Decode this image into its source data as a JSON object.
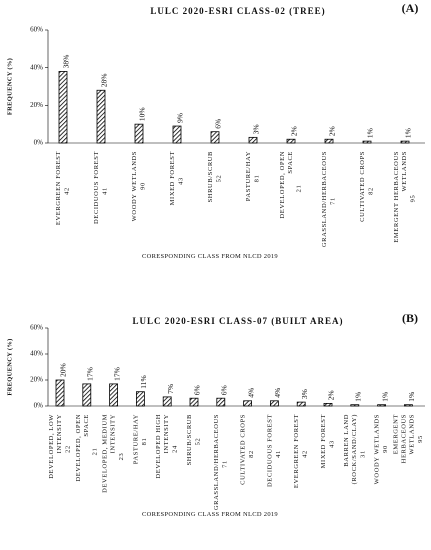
{
  "chart_data": [
    {
      "type": "bar",
      "title": "LULC 2020-ESRI CLASS-02 (TREE)",
      "panel_label": "(A)",
      "y_label": "FREQUENCY (%)",
      "x_label": "CORESPONDING CLASS FROM  NLCD 2019",
      "categories": [
        "EVERGREEN FOREST",
        "DECIDUOUS FOREST",
        "WOODY WETLANDS",
        "MIXED FOREST",
        "SHRUB/SCRUB",
        "PASTURE/HAY",
        "DEVELOPED, OPEN SPACE",
        "GRASSLAND/HERBACEOUS",
        "CULTIVATED CROPS",
        "EMERGENT HERBACEOUS WETLANDS"
      ],
      "codes": [
        "42",
        "41",
        "90",
        "43",
        "52",
        "81",
        "21",
        "71",
        "82",
        "95"
      ],
      "values": [
        38,
        28,
        10,
        9,
        6,
        3,
        2,
        2,
        1,
        1
      ],
      "value_labels": [
        "38%",
        "28%",
        "10%",
        "9%",
        "6%",
        "3%",
        "2%",
        "2%",
        "1%",
        "1%"
      ],
      "color": "#000000",
      "ylim": [
        0,
        60
      ],
      "yticks": [
        {
          "value": 0,
          "label": "0%"
        },
        {
          "value": 20,
          "label": "20%"
        },
        {
          "value": 40,
          "label": "40%"
        },
        {
          "value": 60,
          "label": "60%"
        }
      ]
    },
    {
      "type": "bar",
      "title": "LULC 2020-ESRI CLASS-07 (BUILT AREA)",
      "panel_label": "(B)",
      "y_label": "FREQUENCY (%)",
      "x_label": "CORESPONDING CLASS FROM NLCD 2019",
      "categories": [
        "DEVELOPED, LOW INTENSITY",
        "DEVELOPED, OPEN SPACE",
        "DEVELOPED, MEDIUM INTENSITY",
        "PASTURE/HAY",
        "DEVELOPED HIGH INTENSITY",
        "SHRUB/SCRUB",
        "GRASSLAND/HERBACEOUS",
        "CULTIVATED CROPS",
        "DECIDUOUS FOREST",
        "EVERGREEN FOREST",
        "MIXED FOREST",
        "BARREN LAND (ROCK/SAND/CLAY)",
        "WOODY WETLANDS",
        "EMERGENT HERBACEOUS WETLANDS"
      ],
      "codes": [
        "22",
        "21",
        "23",
        "81",
        "24",
        "52",
        "71",
        "82",
        "41",
        "42",
        "43",
        "31",
        "90",
        "95"
      ],
      "values": [
        20,
        17,
        17,
        11,
        7,
        6,
        6,
        4,
        4,
        3,
        2,
        1,
        1,
        1
      ],
      "value_labels": [
        "20%",
        "17%",
        "17%",
        "11%",
        "7%",
        "6%",
        "6%",
        "4%",
        "4%",
        "3%",
        "2%",
        "1%",
        "1%",
        "1%"
      ],
      "color": "#000000",
      "ylim": [
        0,
        60
      ],
      "yticks": [
        {
          "value": 0,
          "label": "0%"
        },
        {
          "value": 20,
          "label": "20%"
        },
        {
          "value": 40,
          "label": "40%"
        },
        {
          "value": 60,
          "label": "60%"
        }
      ]
    }
  ]
}
